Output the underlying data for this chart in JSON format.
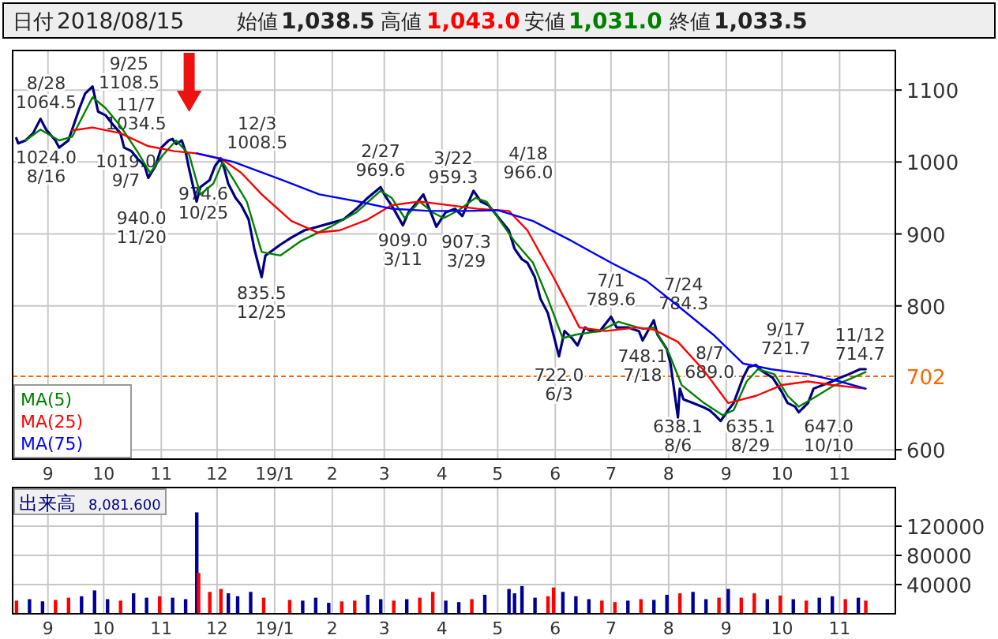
{
  "chart_data": [
    {
      "type": "other",
      "annotations": [
        "日付",
        "2018/08/15",
        "始値",
        "1,038.5",
        "高値",
        "1,043.0",
        "安値",
        "1,031.0",
        "終値",
        "1,033.5"
      ]
    },
    {
      "type": "line",
      "xlim": [
        "2018-08-13",
        "2019-12-01"
      ],
      "ylim": [
        587,
        1155
      ],
      "yticks": [
        600,
        800,
        900,
        1000,
        1100
      ],
      "grid": true,
      "legend": "bottom left",
      "xticks": [
        {
          "value": "2018-09-01",
          "label": "9"
        },
        {
          "value": "2018-10-01",
          "label": "10"
        },
        {
          "value": "2018-11-01",
          "label": "11"
        },
        {
          "value": "2018-12-01",
          "label": "12"
        },
        {
          "value": "2019-01-01",
          "label": "19/1"
        },
        {
          "value": "2019-02-01",
          "label": "2"
        },
        {
          "value": "2019-03-01",
          "label": "3"
        },
        {
          "value": "2019-04-01",
          "label": "4"
        },
        {
          "value": "2019-05-01",
          "label": "5"
        },
        {
          "value": "2019-06-01",
          "label": "6"
        },
        {
          "value": "2019-07-01",
          "label": "7"
        },
        {
          "value": "2019-08-01",
          "label": "8"
        },
        {
          "value": "2019-09-01",
          "label": "9"
        },
        {
          "value": "2019-10-01",
          "label": "10"
        },
        {
          "value": "2019-11-01",
          "label": "11"
        }
      ],
      "ref_lines": [
        {
          "axis": "y",
          "value": 702,
          "label": "702",
          "color": "#ff6600",
          "line_style": "dashed"
        }
      ],
      "series": [
        {
          "color": "#000080",
          "x": [
            "2018-08-15",
            "2018-08-16",
            "2018-08-20",
            "2018-08-24",
            "2018-08-28",
            "2018-08-31",
            "2018-09-05",
            "2018-09-07",
            "2018-09-12",
            "2018-09-18",
            "2018-09-21",
            "2018-09-25",
            "2018-09-28",
            "2018-10-02",
            "2018-10-05",
            "2018-10-10",
            "2018-10-12",
            "2018-10-16",
            "2018-10-19",
            "2018-10-23",
            "2018-10-25",
            "2018-10-29",
            "2018-11-01",
            "2018-11-05",
            "2018-11-07",
            "2018-11-09",
            "2018-11-12",
            "2018-11-14",
            "2018-11-16",
            "2018-11-20",
            "2018-11-22",
            "2018-11-27",
            "2018-11-30",
            "2018-12-03",
            "2018-12-05",
            "2018-12-07",
            "2018-12-11",
            "2018-12-14",
            "2018-12-18",
            "2018-12-21",
            "2018-12-25",
            "2018-12-27",
            "2019-01-04",
            "2019-01-10",
            "2019-01-17",
            "2019-01-24",
            "2019-01-31",
            "2019-02-07",
            "2019-02-14",
            "2019-02-20",
            "2019-02-27",
            "2019-03-01",
            "2019-03-06",
            "2019-03-11",
            "2019-03-14",
            "2019-03-19",
            "2019-03-22",
            "2019-03-26",
            "2019-03-29",
            "2019-04-03",
            "2019-04-08",
            "2019-04-12",
            "2019-04-18",
            "2019-04-22",
            "2019-04-26",
            "2019-05-07",
            "2019-05-10",
            "2019-05-14",
            "2019-05-17",
            "2019-05-21",
            "2019-05-24",
            "2019-05-28",
            "2019-05-31",
            "2019-06-03",
            "2019-06-06",
            "2019-06-10",
            "2019-06-13",
            "2019-06-17",
            "2019-06-20",
            "2019-06-25",
            "2019-07-01",
            "2019-07-04",
            "2019-07-10",
            "2019-07-16",
            "2019-07-18",
            "2019-07-24",
            "2019-07-26",
            "2019-07-31",
            "2019-08-02",
            "2019-08-06",
            "2019-08-07",
            "2019-08-09",
            "2019-08-14",
            "2019-08-19",
            "2019-08-23",
            "2019-08-26",
            "2019-08-29",
            "2019-09-02",
            "2019-09-05",
            "2019-09-10",
            "2019-09-13",
            "2019-09-17",
            "2019-09-20",
            "2019-09-26",
            "2019-10-01",
            "2019-10-04",
            "2019-10-08",
            "2019-10-10",
            "2019-10-15",
            "2019-10-18",
            "2019-10-23",
            "2019-10-28",
            "2019-11-01",
            "2019-11-06",
            "2019-11-12",
            "2019-11-15"
          ],
          "values": [
            1033,
            1026,
            1030,
            1040,
            1060,
            1045,
            1030,
            1020,
            1030,
            1075,
            1095,
            1105,
            1070,
            1065,
            1055,
            1040,
            1020,
            1015,
            1005,
            995,
            978,
            995,
            1020,
            1030,
            1032,
            1025,
            1030,
            1015,
            990,
            945,
            965,
            975,
            995,
            1005,
            990,
            970,
            950,
            940,
            920,
            880,
            840,
            870,
            885,
            895,
            905,
            910,
            915,
            920,
            935,
            950,
            965,
            955,
            935,
            912,
            930,
            945,
            955,
            930,
            910,
            930,
            935,
            925,
            960,
            945,
            940,
            905,
            880,
            865,
            860,
            840,
            810,
            790,
            760,
            730,
            765,
            755,
            745,
            770,
            765,
            765,
            785,
            770,
            770,
            765,
            752,
            780,
            760,
            740,
            720,
            645,
            685,
            670,
            665,
            660,
            655,
            648,
            640,
            655,
            665,
            700,
            715,
            718,
            710,
            700,
            680,
            665,
            660,
            652,
            665,
            685,
            690,
            695,
            700,
            705,
            712,
            712
          ]
        },
        {
          "name": "MA(5)",
          "color": "#008000",
          "x": [
            "2018-08-20",
            "2018-08-28",
            "2018-09-07",
            "2018-09-14",
            "2018-09-25",
            "2018-10-02",
            "2018-10-10",
            "2018-10-19",
            "2018-10-26",
            "2018-11-02",
            "2018-11-09",
            "2018-11-16",
            "2018-11-22",
            "2018-11-29",
            "2018-12-04",
            "2018-12-10",
            "2018-12-17",
            "2018-12-25",
            "2019-01-04",
            "2019-01-15",
            "2019-01-31",
            "2019-02-14",
            "2019-02-27",
            "2019-03-05",
            "2019-03-12",
            "2019-03-20",
            "2019-03-27",
            "2019-04-02",
            "2019-04-10",
            "2019-04-19",
            "2019-04-25",
            "2019-05-10",
            "2019-05-20",
            "2019-05-28",
            "2019-06-05",
            "2019-06-12",
            "2019-06-25",
            "2019-07-05",
            "2019-07-18",
            "2019-07-24",
            "2019-08-01",
            "2019-08-08",
            "2019-08-20",
            "2019-08-30",
            "2019-09-05",
            "2019-09-12",
            "2019-09-18",
            "2019-09-27",
            "2019-10-04",
            "2019-10-10",
            "2019-10-18",
            "2019-10-28",
            "2019-11-08",
            "2019-11-15"
          ],
          "values": [
            1030,
            1045,
            1030,
            1035,
            1090,
            1075,
            1050,
            1015,
            985,
            1010,
            1030,
            1010,
            955,
            970,
            1000,
            975,
            945,
            875,
            870,
            890,
            910,
            930,
            960,
            950,
            922,
            945,
            930,
            922,
            933,
            950,
            945,
            890,
            860,
            810,
            755,
            760,
            765,
            778,
            768,
            770,
            735,
            690,
            665,
            648,
            655,
            695,
            712,
            705,
            675,
            660,
            672,
            688,
            700,
            708
          ]
        },
        {
          "name": "MA(25)",
          "color": "#ff0000",
          "x": [
            "2018-09-14",
            "2018-09-25",
            "2018-10-10",
            "2018-10-25",
            "2018-11-08",
            "2018-11-20",
            "2018-12-03",
            "2018-12-14",
            "2018-12-25",
            "2019-01-10",
            "2019-01-24",
            "2019-02-05",
            "2019-02-20",
            "2019-03-05",
            "2019-03-20",
            "2019-04-05",
            "2019-04-20",
            "2019-05-07",
            "2019-05-17",
            "2019-05-31",
            "2019-06-14",
            "2019-06-28",
            "2019-07-15",
            "2019-07-24",
            "2019-08-06",
            "2019-08-20",
            "2019-09-02",
            "2019-09-17",
            "2019-10-01",
            "2019-10-15",
            "2019-10-28",
            "2019-11-15"
          ],
          "values": [
            1044,
            1048,
            1040,
            1022,
            1015,
            1012,
            1005,
            985,
            955,
            918,
            902,
            905,
            920,
            940,
            945,
            940,
            935,
            932,
            905,
            840,
            770,
            765,
            770,
            767,
            750,
            710,
            665,
            675,
            690,
            695,
            690,
            685
          ]
        },
        {
          "name": "MA(75)",
          "color": "#0000ff",
          "x": [
            "2018-11-20",
            "2018-12-10",
            "2019-01-05",
            "2019-01-25",
            "2019-02-15",
            "2019-03-05",
            "2019-03-25",
            "2019-04-15",
            "2019-05-01",
            "2019-05-20",
            "2019-06-10",
            "2019-07-01",
            "2019-07-20",
            "2019-08-06",
            "2019-08-25",
            "2019-09-10",
            "2019-09-25",
            "2019-10-15",
            "2019-11-01",
            "2019-11-15"
          ],
          "values": [
            1012,
            1000,
            975,
            955,
            945,
            935,
            932,
            932,
            933,
            918,
            890,
            860,
            835,
            800,
            760,
            720,
            712,
            705,
            695,
            685
          ]
        }
      ],
      "annotations": [
        {
          "text": "8/28\n1064.5",
          "x": "2018-08-28",
          "y": 1064.5
        },
        {
          "text": "1024.0\n8/16",
          "x": "2018-08-16",
          "y": 1024.0
        },
        {
          "text": "1019.0\n9/7",
          "x": "2018-09-07",
          "y": 1019.0
        },
        {
          "text": "9/25\n1108.5",
          "x": "2018-09-25",
          "y": 1108.5
        },
        {
          "text": "974.6\n10/25",
          "x": "2018-10-25",
          "y": 974.6
        },
        {
          "text": "11/7\n1034.5",
          "x": "2018-11-07",
          "y": 1034.5
        },
        {
          "text": "940.0\n11/20",
          "x": "2018-11-20",
          "y": 940.0
        },
        {
          "text": "12/3\n1008.5",
          "x": "2018-12-03",
          "y": 1008.5
        },
        {
          "text": "835.5\n12/25",
          "x": "2018-12-25",
          "y": 835.5
        },
        {
          "text": "2/27\n969.6",
          "x": "2019-02-27",
          "y": 969.6
        },
        {
          "text": "909.0\n3/11",
          "x": "2019-03-11",
          "y": 909.0
        },
        {
          "text": "3/22\n959.3",
          "x": "2019-03-22",
          "y": 959.3
        },
        {
          "text": "907.3\n3/29",
          "x": "2019-03-29",
          "y": 907.3
        },
        {
          "text": "4/18\n966.0",
          "x": "2019-04-18",
          "y": 966.0
        },
        {
          "text": "722.0\n6/3",
          "x": "2019-06-03",
          "y": 722.0
        },
        {
          "text": "7/1\n789.6",
          "x": "2019-07-01",
          "y": 789.6
        },
        {
          "text": "748.1\n7/18",
          "x": "2019-07-18",
          "y": 748.1
        },
        {
          "text": "7/24\n784.3",
          "x": "2019-07-24",
          "y": 784.3
        },
        {
          "text": "638.1\n8/6",
          "x": "2019-08-06",
          "y": 638.1
        },
        {
          "text": "8/7\n689.0",
          "x": "2019-08-07",
          "y": 689.0
        },
        {
          "text": "635.1\n8/29",
          "x": "2019-08-29",
          "y": 635.1
        },
        {
          "text": "9/17\n721.7",
          "x": "2019-09-17",
          "y": 721.7
        },
        {
          "text": "647.0\n10/10",
          "x": "2019-10-10",
          "y": 647.0
        },
        {
          "text": "11/12\n714.7",
          "x": "2019-11-12",
          "y": 714.7
        }
      ]
    },
    {
      "type": "bar",
      "title": "出来高",
      "annotations": [
        "8,081.600"
      ],
      "xlim": [
        "2018-08-13",
        "2019-12-01"
      ],
      "ylim": [
        0,
        173000
      ],
      "yticks": [
        40000,
        80000,
        120000
      ],
      "grid": true,
      "xticks": [
        {
          "value": "2018-09-01",
          "label": "9"
        },
        {
          "value": "2018-10-01",
          "label": "10"
        },
        {
          "value": "2018-11-01",
          "label": "11"
        },
        {
          "value": "2018-12-01",
          "label": "12"
        },
        {
          "value": "2019-01-01",
          "label": "19/1"
        },
        {
          "value": "2019-02-01",
          "label": "2"
        },
        {
          "value": "2019-03-01",
          "label": "3"
        },
        {
          "value": "2019-04-01",
          "label": "4"
        },
        {
          "value": "2019-05-01",
          "label": "5"
        },
        {
          "value": "2019-06-01",
          "label": "6"
        },
        {
          "value": "2019-07-01",
          "label": "7"
        },
        {
          "value": "2019-08-01",
          "label": "8"
        },
        {
          "value": "2019-09-01",
          "label": "9"
        },
        {
          "value": "2019-10-01",
          "label": "10"
        },
        {
          "value": "2019-11-01",
          "label": "11"
        }
      ],
      "x": [
        "2018-08-15",
        "2018-08-22",
        "2018-08-29",
        "2018-09-05",
        "2018-09-12",
        "2018-09-19",
        "2018-09-26",
        "2018-10-03",
        "2018-10-10",
        "2018-10-17",
        "2018-10-24",
        "2018-10-31",
        "2018-11-07",
        "2018-11-14",
        "2018-11-20",
        "2018-11-21",
        "2018-11-27",
        "2018-12-03",
        "2018-12-07",
        "2018-12-12",
        "2018-12-19",
        "2018-12-26",
        "2019-01-09",
        "2019-01-16",
        "2019-01-23",
        "2019-01-30",
        "2019-02-06",
        "2019-02-13",
        "2019-02-20",
        "2019-02-27",
        "2019-03-06",
        "2019-03-13",
        "2019-03-20",
        "2019-03-27",
        "2019-04-03",
        "2019-04-10",
        "2019-04-17",
        "2019-04-24",
        "2019-05-07",
        "2019-05-10",
        "2019-05-14",
        "2019-05-21",
        "2019-05-28",
        "2019-05-31",
        "2019-06-05",
        "2019-06-12",
        "2019-06-19",
        "2019-06-26",
        "2019-07-03",
        "2019-07-10",
        "2019-07-17",
        "2019-07-24",
        "2019-07-31",
        "2019-08-07",
        "2019-08-14",
        "2019-08-21",
        "2019-08-28",
        "2019-09-02",
        "2019-09-09",
        "2019-09-16",
        "2019-09-23",
        "2019-09-30",
        "2019-10-07",
        "2019-10-14",
        "2019-10-21",
        "2019-10-28",
        "2019-11-04",
        "2019-11-11",
        "2019-11-15"
      ],
      "values": [
        18000,
        20000,
        17000,
        19000,
        22000,
        24000,
        32000,
        20000,
        18000,
        28000,
        22000,
        24000,
        22000,
        20000,
        139000,
        56000,
        30000,
        34000,
        28000,
        24000,
        30000,
        22000,
        19000,
        18000,
        22000,
        15000,
        17000,
        18000,
        26000,
        20000,
        18000,
        20000,
        22000,
        30000,
        18000,
        16000,
        20000,
        26000,
        34000,
        28000,
        38000,
        22000,
        24000,
        36000,
        30000,
        24000,
        20000,
        18000,
        16000,
        18000,
        20000,
        19000,
        26000,
        28000,
        30000,
        20000,
        22000,
        34000,
        22000,
        28000,
        20000,
        25000,
        20000,
        18000,
        22000,
        24000,
        20000,
        22000,
        18000
      ],
      "colors": [
        "#ff0000",
        "#000099",
        "#000099",
        "#ff0000",
        "#ff0000",
        "#000099",
        "#000099",
        "#000099",
        "#ff0000",
        "#000099",
        "#000099",
        "#ff0000",
        "#000099",
        "#000099",
        "#000099",
        "#ff0000",
        "#ff0000",
        "#ff0000",
        "#000099",
        "#000099",
        "#000099",
        "#ff0000",
        "#ff0000",
        "#000099",
        "#000099",
        "#000099",
        "#ff0000",
        "#ff0000",
        "#000099",
        "#000099",
        "#ff0000",
        "#000099",
        "#ff0000",
        "#ff0000",
        "#000099",
        "#000099",
        "#ff0000",
        "#000099",
        "#000099",
        "#000099",
        "#000099",
        "#000099",
        "#ff0000",
        "#ff0000",
        "#000099",
        "#000099",
        "#000099",
        "#ff0000",
        "#ff0000",
        "#000099",
        "#ff0000",
        "#000099",
        "#000099",
        "#ff0000",
        "#000099",
        "#000099",
        "#ff0000",
        "#000099",
        "#ff0000",
        "#ff0000",
        "#000099",
        "#ff0000",
        "#000099",
        "#ff0000",
        "#000099",
        "#000099",
        "#ff0000",
        "#000099",
        "#ff0000"
      ]
    }
  ]
}
